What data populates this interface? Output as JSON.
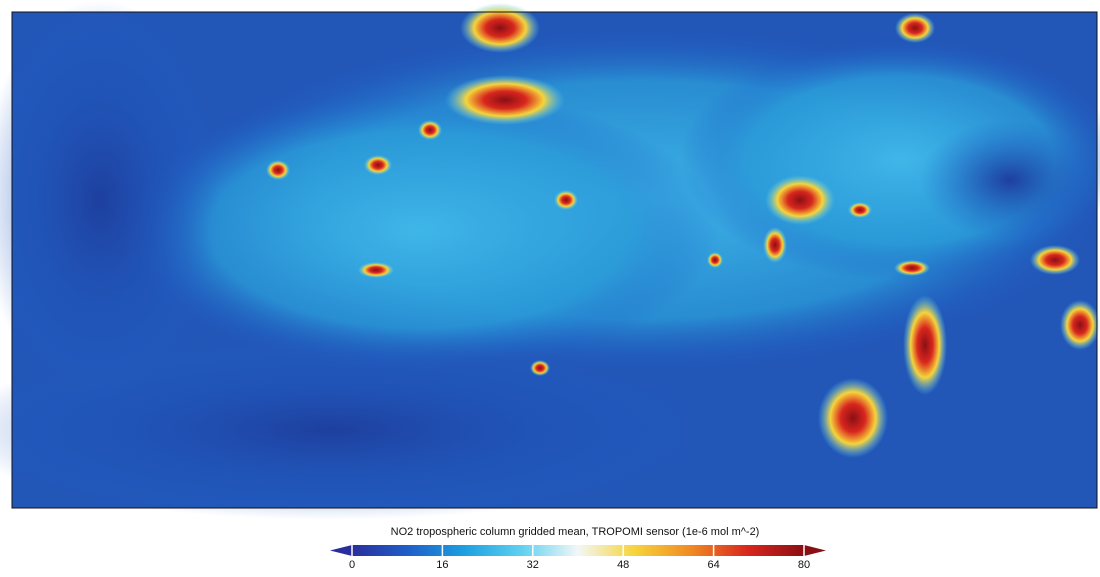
{
  "colorbar": {
    "title": "NO2 tropospheric column gridded mean, TROPOMI sensor (1e-6 mol m^-2)",
    "lim": [
      0,
      80
    ],
    "ticks": [
      0,
      16,
      32,
      48,
      64,
      80
    ],
    "colors": [
      "#2a2e9c",
      "#1f5fc8",
      "#1ea0e0",
      "#5fd0f0",
      "#f2f7f7",
      "#f6d43a",
      "#f08a22",
      "#d8261e",
      "#8a0f14"
    ]
  }
}
